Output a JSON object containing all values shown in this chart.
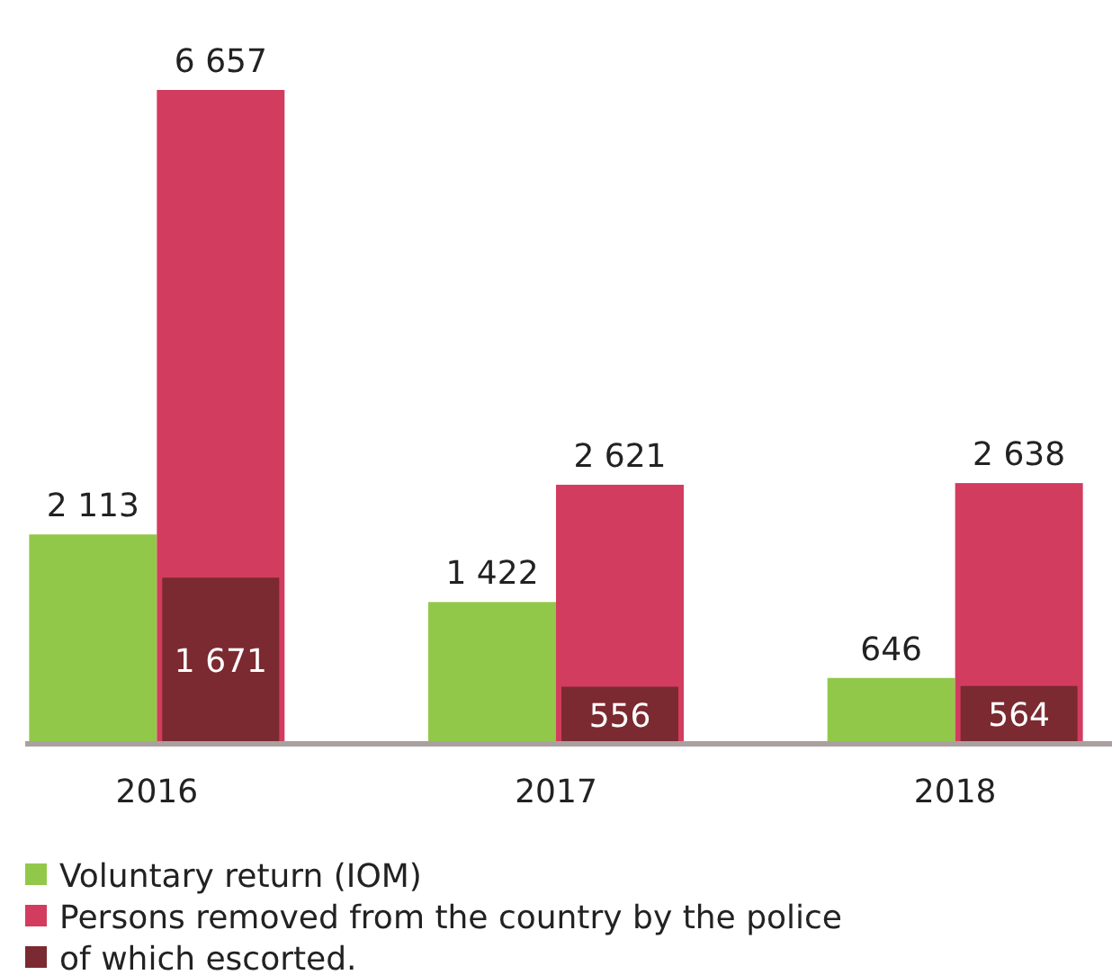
{
  "chart_data": {
    "type": "bar",
    "categories": [
      "2016",
      "2017",
      "2018"
    ],
    "legend": "bottom",
    "series": [
      {
        "name": "Voluntary return (IOM)",
        "color": "#92c84a",
        "values": [
          2113,
          1422,
          646
        ],
        "value_labels": [
          "2 113",
          "1 422",
          "646"
        ]
      },
      {
        "name": "Persons removed from the country by the police",
        "color": "#d23c5f",
        "values": [
          6657,
          2621,
          2638
        ],
        "value_labels": [
          "6 657",
          "2 621",
          "2 638"
        ]
      },
      {
        "name": "of which escorted.",
        "color": "#7a2a30",
        "values": [
          1671,
          556,
          564
        ],
        "value_labels": [
          "1 671",
          "556",
          "564"
        ]
      }
    ]
  }
}
